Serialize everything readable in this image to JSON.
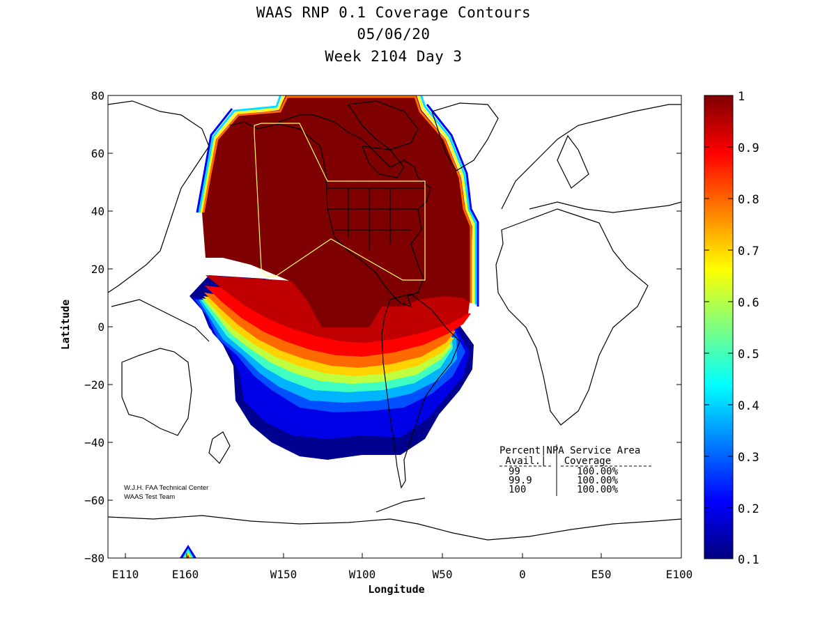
{
  "title": {
    "line1": "WAAS RNP 0.1 Coverage Contours",
    "line2": "05/06/20",
    "line3": "Week 2104 Day 3"
  },
  "axes": {
    "xlabel": "Longitude",
    "ylabel": "Latitude",
    "xticks": [
      "E110",
      "E160",
      "W150",
      "W100",
      "W50",
      "0",
      "E50",
      "E100"
    ],
    "yticks": [
      "80",
      "60",
      "40",
      "20",
      "0",
      "−20",
      "−40",
      "−60",
      "−80"
    ]
  },
  "colorbar": {
    "ticks": [
      "1",
      "0.9",
      "0.8",
      "0.7",
      "0.6",
      "0.5",
      "0.4",
      "0.3",
      "0.2",
      "0.1"
    ],
    "range": [
      0.1,
      1
    ],
    "colormap": "jet"
  },
  "table": {
    "header1": "Percent|NPA Service Area",
    "header2": " Avail.|   Coverage",
    "rows": [
      {
        "avail": "99",
        "coverage": "100.00%"
      },
      {
        "avail": "99.9",
        "coverage": "100.00%"
      },
      {
        "avail": "100",
        "coverage": "100.00%"
      }
    ]
  },
  "credit": {
    "line1": "W.J.H. FAA Technical Center",
    "line2": "WAAS Test Team"
  },
  "colors": {
    "max_coverage": "#7f0000",
    "service_area_outline": "#ffff66",
    "coastline": "#000000"
  }
}
